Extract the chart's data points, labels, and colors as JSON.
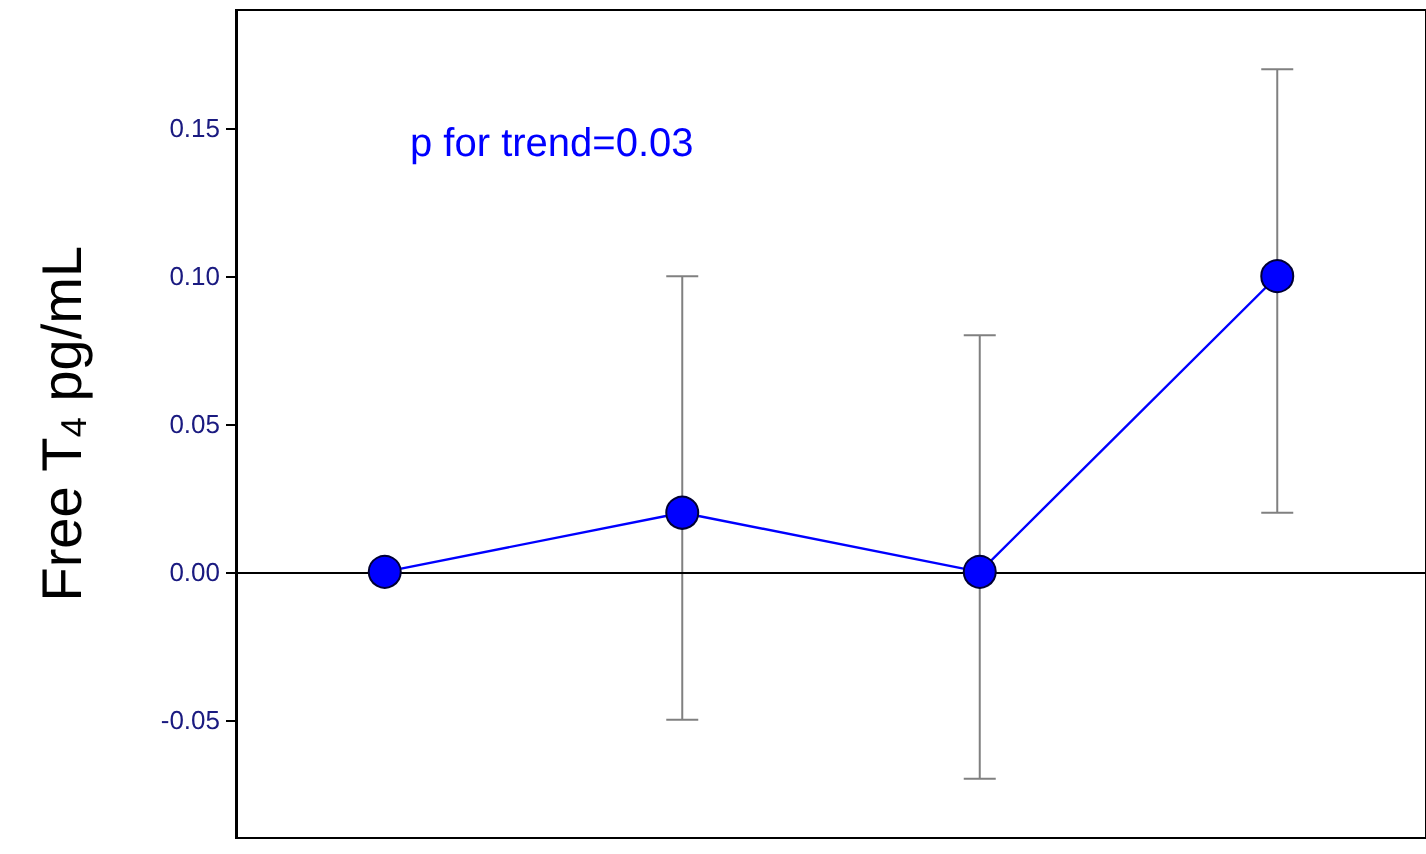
{
  "chart_data": {
    "type": "line",
    "ylabel": "Free T$_{4}$ pg/mL",
    "annotations": [
      "p for trend=0.03"
    ],
    "categories": [
      null,
      null,
      null,
      null
    ],
    "series": [
      {
        "color": "#0000ff",
        "values": [
          0,
          0.02,
          0,
          0.1
        ],
        "errors": [
          null,
          [
            -0.05,
            0.1
          ],
          [
            -0.07,
            0.08
          ],
          [
            0.02,
            0.17
          ]
        ]
      }
    ],
    "ylim": [
      -0.09,
      0.19
    ],
    "yticks": [
      {
        "value": -0.05,
        "label": "-0.05"
      },
      {
        "value": 0,
        "label": "0.00"
      },
      {
        "value": 0.05,
        "label": "0.05"
      },
      {
        "value": 0.1,
        "label": "0.10"
      },
      {
        "value": 0.15,
        "label": "0.15"
      }
    ],
    "ref_lines": [
      {
        "axis": "y",
        "value": 0,
        "color": "#000000"
      }
    ],
    "marker": "circle",
    "line_style": "solid",
    "grid": false
  }
}
